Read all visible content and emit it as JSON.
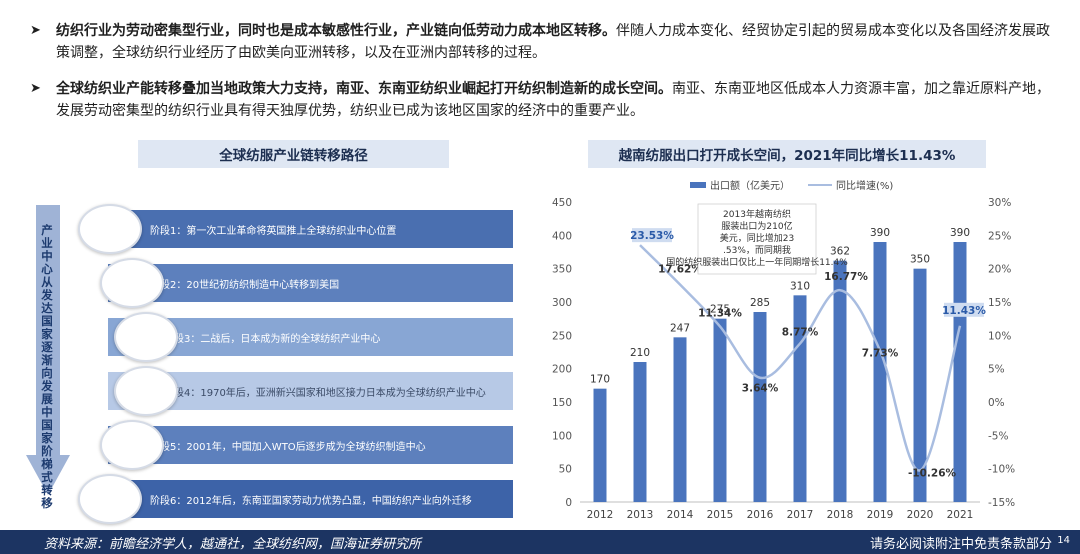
{
  "bullets": [
    {
      "bold": "纺织行业为劳动密集型行业，同时也是成本敏感性行业，产业链向低劳动力成本地区转移。",
      "text": "伴随人力成本变化、经贸协定引起的贸易成本变化以及各国经济发展政策调整，全球纺织行业经历了由欧美向亚洲转移，以及在亚洲内部转移的过程。"
    },
    {
      "bold": "全球纺织业产能转移叠加当地政策大力支持，南亚、东南亚纺织业崛起打开纺织制造新的成长空间。",
      "text": "南亚、东南亚地区低成本人力资源丰富，加之靠近原料产地，发展劳动密集型的纺织行业具有得天独厚优势，纺织业已成为该地区国家的经济中的重要产业。"
    }
  ],
  "left_panel": {
    "title": "全球纺服产业链转移路径",
    "vertical_label": "产业中心从发达国家逐渐向发展中国家阶梯式转移",
    "stages": [
      {
        "label": "阶段1：第一次工业革命将英国推上全球纺织业中心位置",
        "color": "#4a6fb0"
      },
      {
        "label": "阶段2：20世纪初纺织制造中心转移到美国",
        "color": "#5d80bd"
      },
      {
        "label": "阶段3：二战后，日本成为新的全球纺织产业中心",
        "color": "#88a6d4"
      },
      {
        "label": "阶段4：1970年后，亚洲新兴国家和地区接力日本成为全球纺织产业中心",
        "color": "#b7c9e6"
      },
      {
        "label": "阶段5：2001年，中国加入WTO后逐步成为全球纺织制造中心",
        "color": "#5d80bd"
      },
      {
        "label": "阶段6：2012年后，东南亚国家劳动力优势凸显，中国纺织产业向外迁移",
        "color": "#3d63a8"
      }
    ]
  },
  "right_panel": {
    "title": "越南纺服出口打开成长空间，2021年同比增长11.43%"
  },
  "chart_data": {
    "type": "bar",
    "categories": [
      "2012",
      "2013",
      "2014",
      "2015",
      "2016",
      "2017",
      "2018",
      "2019",
      "2020",
      "2021"
    ],
    "series": [
      {
        "name": "出口额（亿美元）",
        "type": "bar",
        "axis": "left",
        "values": [
          170,
          210,
          247,
          275,
          285,
          310,
          362,
          390,
          350,
          390
        ],
        "color": "#4a74bd"
      },
      {
        "name": "同比增速(%)",
        "type": "line",
        "axis": "right",
        "values": [
          null,
          23.53,
          17.62,
          11.34,
          3.64,
          8.77,
          16.77,
          7.73,
          -10.26,
          11.43
        ],
        "labels": [
          "",
          "23.53%",
          "17.62%",
          "11.34%",
          "3.64%",
          "8.77%",
          "16.77%",
          "7.73%",
          "-10.26%",
          "11.43%"
        ],
        "color": "#a9bde0"
      }
    ],
    "left_axis": {
      "min": 0,
      "max": 450,
      "ticks": [
        0,
        50,
        100,
        150,
        200,
        250,
        300,
        350,
        400,
        450
      ]
    },
    "right_axis": {
      "min": -15,
      "max": 30,
      "ticks": [
        "-15%",
        "-10%",
        "-5%",
        "0%",
        "5%",
        "10%",
        "15%",
        "20%",
        "25%",
        "30%"
      ],
      "tick_values": [
        -15,
        -10,
        -5,
        0,
        5,
        10,
        15,
        20,
        25,
        30
      ]
    },
    "legend_position": "top",
    "grid": false,
    "annotation": "2013年越南纺织服装出口为210亿美元，同比增加23.53%，而同期我国的纺织服装出口仅比上一年同期增长11.4%"
  },
  "footer": {
    "source": "资料来源：前瞻经济学人，越通社，全球纺织网，国海证券研究所",
    "disclaimer": "请务必阅读附注中免责条款部分",
    "page": "14"
  }
}
